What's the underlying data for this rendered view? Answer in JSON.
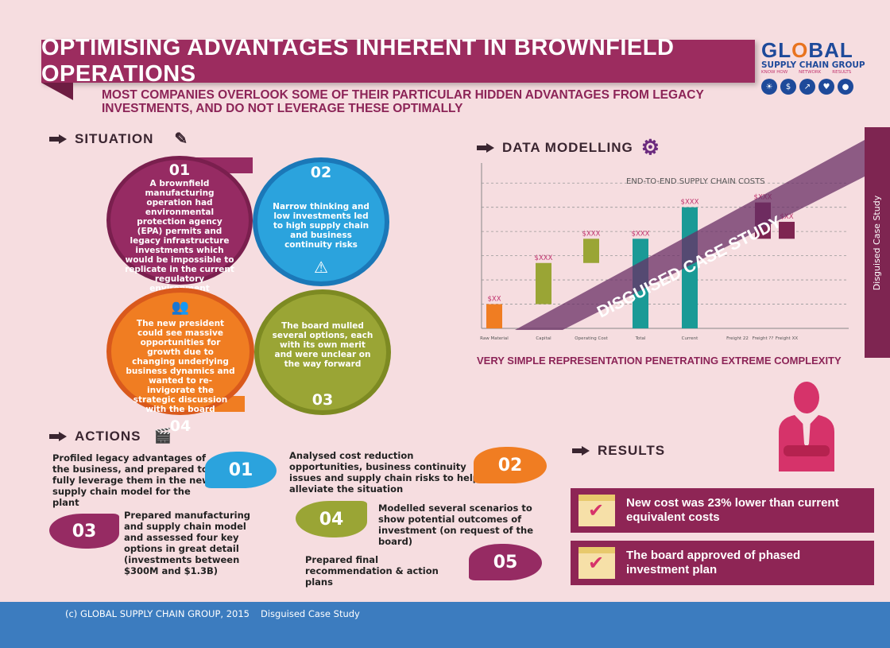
{
  "title": "OPTIMISING ADVANTAGES INHERENT IN BROWNFIELD OPERATIONS",
  "subtitle": "MOST COMPANIES OVERLOOK SOME OF THEIR PARTICULAR HIDDEN ADVANTAGES FROM LEGACY INVESTMENTS, AND DO NOT LEVERAGE THESE OPTIMALLY",
  "logo": {
    "main_pre": "GL",
    "main_o": "O",
    "main_post": "BAL",
    "sub": "SUPPLY CHAIN GROUP",
    "tags": [
      "KNOW HOW",
      "NETWORK",
      "RESULTS"
    ],
    "icons": [
      "lightbulb-icon",
      "dollar-icon",
      "chart-icon",
      "handshake-icon",
      "globe-icon"
    ]
  },
  "situation": {
    "heading": "SITUATION",
    "items": [
      {
        "num": "01",
        "text": "A brownfield manufacturing operation had environmental protection agency (EPA) permits and legacy infrastructure investments which would be impossible to replicate in the current regulatory environment",
        "color": "#962b63"
      },
      {
        "num": "02",
        "text": "Narrow thinking and low investments led to high supply chain and business continuity risks",
        "color": "#2ba3dd"
      },
      {
        "num": "03",
        "text": "The board mulled several options, each with its own merit and were unclear on the way forward",
        "color": "#9aa535"
      },
      {
        "num": "04",
        "text": "The new president could see massive opportunities for growth due to changing underlying business dynamics and wanted to re-invigorate the strategic discussion with the board",
        "color": "#f07d22"
      }
    ]
  },
  "data_modelling": {
    "heading": "DATA MODELLING",
    "caption": "VERY SIMPLE REPRESENTATION PENETRATING EXTREME COMPLEXITY",
    "watermark": "DISGUISED CASE STUDY"
  },
  "chart_data": {
    "type": "bar",
    "title": "END-TO-END SUPPLY CHAIN COSTS",
    "categories": [
      "Raw Material",
      "Capital",
      "Operating Cost",
      "Total",
      "Current",
      "Freight 22",
      "Freight ??",
      "Freight XX"
    ],
    "bars": [
      {
        "category": "Raw Material",
        "bottom": 0,
        "top": 1,
        "label": "$XX",
        "color": "#f07d22"
      },
      {
        "category": "Capital",
        "bottom": 1,
        "top": 2.7,
        "label": "$XXX",
        "color": "#9aa535"
      },
      {
        "category": "Operating Cost",
        "bottom": 2.7,
        "top": 3.7,
        "label": "$XXX",
        "color": "#9aa535"
      },
      {
        "category": "Total",
        "bottom": 0,
        "top": 3.7,
        "label": "$XXX",
        "color": "#1a9a96"
      },
      {
        "category": "Current",
        "bottom": 0,
        "top": 5,
        "label": "$XXX",
        "color": "#1a9a96"
      },
      {
        "category": "Freight ??",
        "bottom": 3.7,
        "top": 5.2,
        "label": "$XXX",
        "color": "#7e2551"
      },
      {
        "category": "Freight XX",
        "bottom": 3.7,
        "top": 4.4,
        "label": "$XX",
        "color": "#7e2551"
      }
    ],
    "ylim": [
      0,
      6.5
    ],
    "grid": true
  },
  "side_tab": "Disguised Case Study",
  "actions": {
    "heading": "ACTIONS",
    "items": [
      {
        "num": "01",
        "text": "Profiled legacy advantages of the business, and prepared to fully leverage them in the new supply chain model for the plant",
        "color": "#2ba3dd"
      },
      {
        "num": "02",
        "text": "Analysed cost reduction opportunities, business continuity issues and supply chain risks to help alleviate the situation",
        "color": "#f07d22"
      },
      {
        "num": "03",
        "text": "Prepared manufacturing and supply chain model and assessed four key options in great detail (investments between $300M and $1.3B)",
        "color": "#962b63"
      },
      {
        "num": "04",
        "text": "Modelled several scenarios to show potential outcomes of investment (on request of the board)",
        "color": "#9aa535"
      },
      {
        "num": "05",
        "text": "Prepared final recommendation & action plans",
        "color": "#962b63"
      }
    ]
  },
  "results": {
    "heading": "RESULTS",
    "items": [
      "New cost was 23% lower than current equivalent costs",
      "The board approved of phased investment plan"
    ]
  },
  "footer": {
    "copyright": "(c) GLOBAL SUPPLY CHAIN GROUP, 2015",
    "tag": "Disguised Case Study"
  }
}
